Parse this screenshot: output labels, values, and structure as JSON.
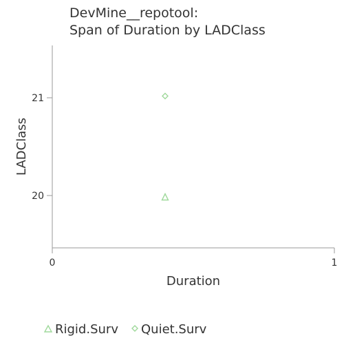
{
  "chart_data": {
    "type": "scatter",
    "title": [
      "DevMine__repotool:",
      "Span of Duration by LADClass"
    ],
    "xlabel": "Duration",
    "ylabel": "LADClass",
    "xlim": [
      0,
      1
    ],
    "ylim": [
      19.5,
      21.5
    ],
    "x_ticks": [
      "0",
      "1"
    ],
    "y_ticks": [
      "20",
      "21"
    ],
    "grid": false,
    "legend_position": "bottom",
    "series": [
      {
        "name": "Rigid.Surv",
        "marker": "triangle",
        "color": "#9fd99b",
        "points": [
          {
            "x": 0.4,
            "y": 20
          }
        ]
      },
      {
        "name": "Quiet.Surv",
        "marker": "diamond",
        "color": "#9fd99b",
        "points": [
          {
            "x": 0.4,
            "y": 21
          }
        ]
      }
    ]
  }
}
